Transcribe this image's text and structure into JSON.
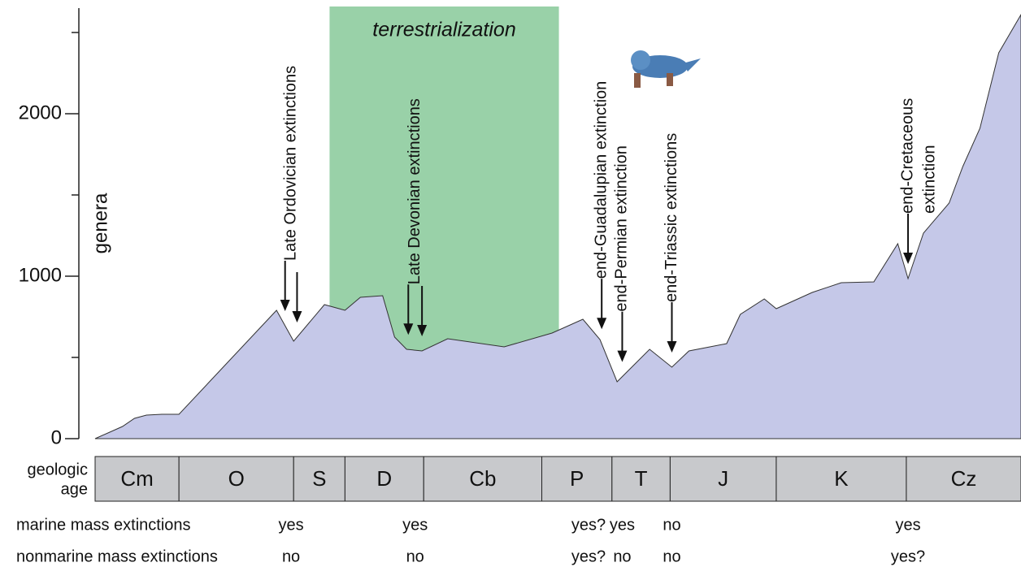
{
  "chart_data": {
    "type": "area",
    "y_label": "genera",
    "color": "#c5c8e8",
    "ylim": [
      0,
      2650
    ],
    "yticks": [
      0,
      1000,
      2000
    ],
    "minor_yticks": [
      500,
      1500,
      2500
    ],
    "xlim": [
      541,
      0
    ],
    "x": [
      541,
      525,
      518,
      511,
      502,
      492,
      435,
      425,
      407,
      395,
      386,
      373,
      366,
      359,
      350,
      335,
      302,
      274,
      256,
      246,
      236,
      217,
      204,
      194,
      172,
      164,
      150,
      143,
      122,
      105,
      86,
      72,
      66,
      57,
      42,
      34,
      24,
      13,
      0
    ],
    "values": [
      0,
      75,
      125,
      145,
      150,
      150,
      790,
      600,
      825,
      790,
      870,
      880,
      625,
      550,
      540,
      615,
      565,
      650,
      735,
      610,
      350,
      550,
      440,
      540,
      585,
      765,
      860,
      800,
      900,
      960,
      965,
      1200,
      985,
      1265,
      1450,
      1675,
      1910,
      2375,
      2610
    ],
    "band": {
      "label": "terrestrialization",
      "start": 404,
      "end": 270,
      "color": "#99d1a8"
    },
    "age_label": [
      "geologic",
      "age"
    ],
    "period_color": "#c8c9cc",
    "periods": [
      {
        "label": "Cm",
        "start": 541,
        "end": 492
      },
      {
        "label": "O",
        "start": 492,
        "end": 425
      },
      {
        "label": "S",
        "start": 425,
        "end": 395
      },
      {
        "label": "D",
        "start": 395,
        "end": 349
      },
      {
        "label": "Cb",
        "start": 349,
        "end": 280
      },
      {
        "label": "P",
        "start": 280,
        "end": 239
      },
      {
        "label": "T",
        "start": 239,
        "end": 205
      },
      {
        "label": "J",
        "start": 205,
        "end": 143
      },
      {
        "label": "K",
        "start": 143,
        "end": 67
      },
      {
        "label": "Cz",
        "start": 67,
        "end": 0
      }
    ],
    "row_labels": {
      "marine": "marine mass extinctions",
      "nonmarine": "nonmarine mass extinctions"
    },
    "events": [
      {
        "label": [
          "Late Ordovician extinctions"
        ],
        "x": [
          430,
          423
        ],
        "marine": "yes",
        "nonmarine": "no"
      },
      {
        "label": [
          "Late Devonian extinctions"
        ],
        "x": [
          358,
          350
        ],
        "marine": "yes",
        "nonmarine": "no"
      },
      {
        "label": [
          "end-Guadalupian extinction"
        ],
        "x": [
          245
        ],
        "marine": "yes?",
        "nonmarine": "yes?"
      },
      {
        "label": [
          "end-Permian extinction"
        ],
        "x": [
          233
        ],
        "marine": "yes",
        "nonmarine": "no"
      },
      {
        "label": [
          "end-Triassic extinctions"
        ],
        "x": [
          204
        ],
        "marine": "no",
        "nonmarine": "no"
      },
      {
        "label": [
          "end-Cretaceous",
          "extinction"
        ],
        "x": [
          66
        ],
        "marine": "yes",
        "nonmarine": "yes?"
      }
    ]
  }
}
